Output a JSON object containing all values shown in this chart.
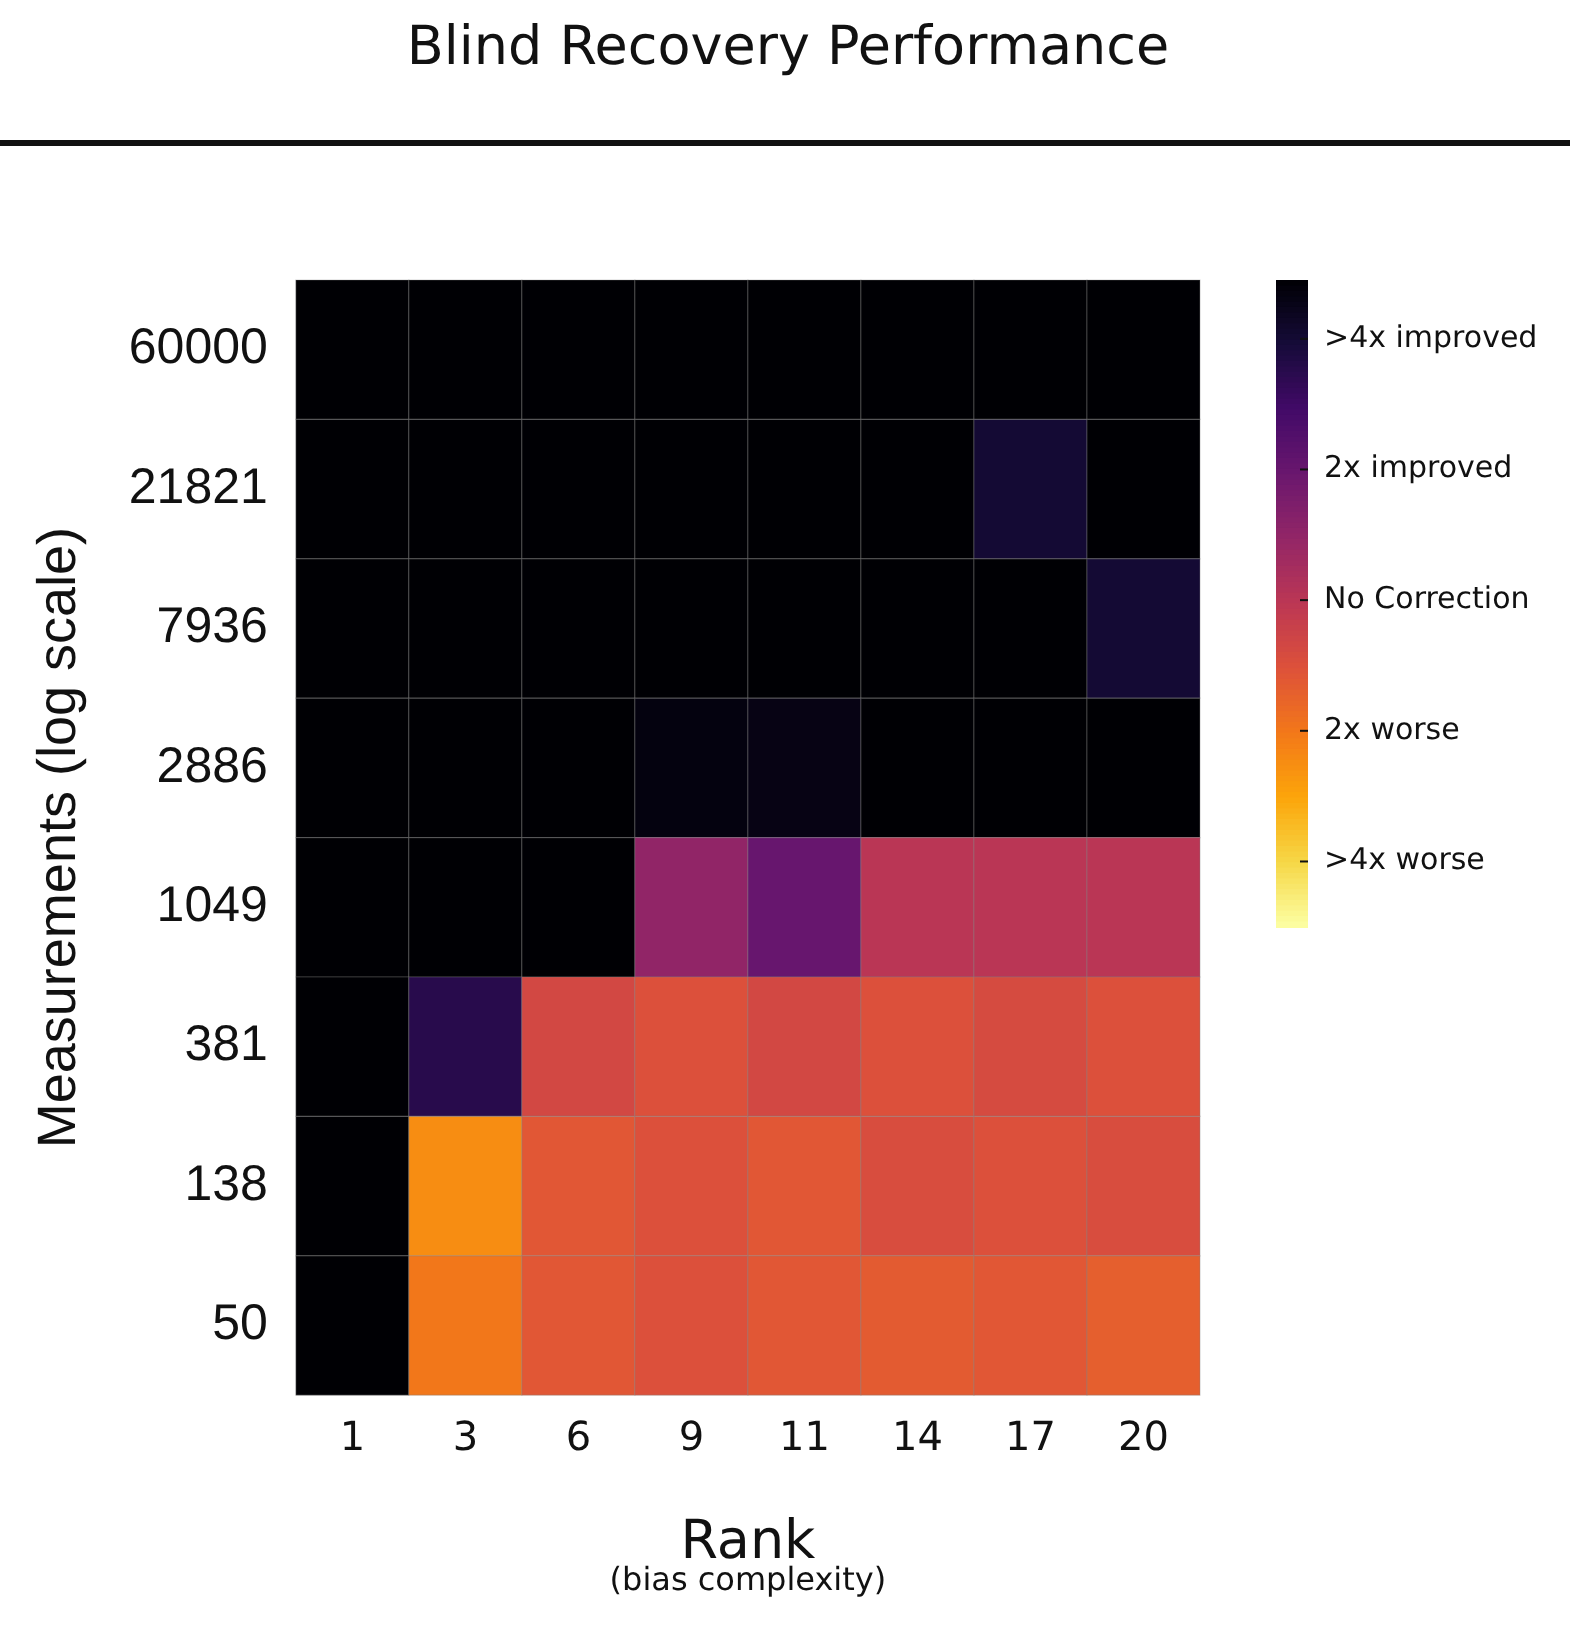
{
  "chart_data": {
    "type": "heatmap",
    "title": "Blind Recovery Performance",
    "xlabel": "Rank",
    "ylabel": "Measurements (log scale)",
    "annotations": [
      "(bias complexity)"
    ],
    "categories": [
      "1",
      "3",
      "6",
      "9",
      "11",
      "14",
      "17",
      "20"
    ],
    "y_categories": [
      "60000",
      "21821",
      "7936",
      "2886",
      "1049",
      "381",
      "138",
      "50"
    ],
    "cells": [
      [
        4.9,
        4.9,
        4.9,
        4.9,
        4.9,
        4.9,
        4.9,
        4.9
      ],
      [
        4.9,
        4.9,
        4.9,
        4.9,
        4.9,
        4.9,
        4,
        4.9
      ],
      [
        4.9,
        4.9,
        4.9,
        4.9,
        4.9,
        4.9,
        4.9,
        4
      ],
      [
        4.9,
        4.9,
        4.9,
        4.7,
        4.6,
        4.9,
        4.9,
        4.9
      ],
      [
        4.9,
        4.9,
        4.9,
        1,
        2,
        0,
        0,
        0
      ],
      [
        4.9,
        3.5,
        -0.7,
        -1,
        -0.7,
        -1,
        -0.8,
        -1
      ],
      [
        4.9,
        -2.5,
        -1.2,
        -1,
        -1.2,
        -0.9,
        -1,
        -0.9
      ],
      [
        4.9,
        -2,
        -1.2,
        -1,
        -1.2,
        -1.3,
        -1.2,
        -1.4
      ]
    ],
    "clim": [
      -5,
      4.9
    ],
    "cticks": [
      {
        "value": 4,
        "label": ">4x improved"
      },
      {
        "value": 2,
        "label": "2x improved"
      },
      {
        "value": 0,
        "label": "No Correction"
      },
      {
        "value": -2,
        "label": "2x worse"
      },
      {
        "value": -4,
        "label": ">4x worse"
      }
    ]
  }
}
